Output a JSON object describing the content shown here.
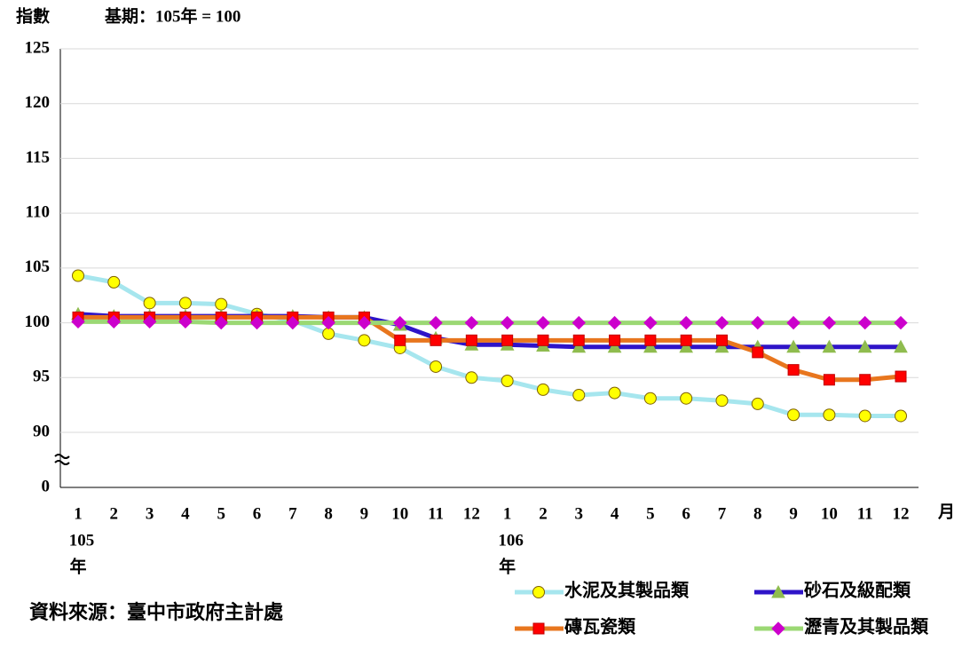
{
  "chart_data": {
    "type": "line",
    "y_label": "指數",
    "subtitle": "基期：105年 = 100",
    "x_label": "月",
    "source": "資料來源：臺中市政府主計處",
    "categories": [
      "1",
      "2",
      "3",
      "4",
      "5",
      "6",
      "7",
      "8",
      "9",
      "10",
      "11",
      "12",
      "1",
      "2",
      "3",
      "4",
      "5",
      "6",
      "7",
      "8",
      "9",
      "10",
      "11",
      "12"
    ],
    "year_labels": [
      "105",
      "106"
    ],
    "year_unit": "年",
    "ylim": [
      0,
      125
    ],
    "yticks": [
      0,
      90,
      95,
      100,
      105,
      110,
      115,
      120,
      125
    ],
    "axis_break": true,
    "grid": true,
    "series": [
      {
        "name": "水泥及其製品類",
        "color": "#a6e6ee",
        "marker": "circle",
        "marker_color": "#ffff00",
        "values": [
          104.3,
          103.7,
          101.8,
          101.8,
          101.7,
          100.8,
          100.2,
          99.0,
          98.4,
          97.7,
          96.0,
          95.0,
          94.7,
          93.9,
          93.4,
          93.6,
          93.1,
          93.1,
          92.9,
          92.6,
          91.6,
          91.6,
          91.5,
          91.5
        ]
      },
      {
        "name": "砂石及級配類",
        "color": "#2e14c8",
        "marker": "triangle",
        "marker_color": "#8fbc4f",
        "values": [
          100.8,
          100.6,
          100.6,
          100.6,
          100.6,
          100.6,
          100.6,
          100.5,
          100.5,
          99.8,
          98.6,
          98.0,
          98.0,
          97.9,
          97.8,
          97.8,
          97.8,
          97.8,
          97.8,
          97.8,
          97.8,
          97.8,
          97.8,
          97.8
        ]
      },
      {
        "name": "磚瓦瓷類",
        "color": "#e8761e",
        "marker": "square",
        "marker_color": "#ff0000",
        "values": [
          100.5,
          100.5,
          100.5,
          100.5,
          100.5,
          100.5,
          100.5,
          100.5,
          100.5,
          98.4,
          98.4,
          98.4,
          98.4,
          98.4,
          98.4,
          98.4,
          98.4,
          98.4,
          98.4,
          97.3,
          95.7,
          94.8,
          94.8,
          95.1
        ]
      },
      {
        "name": "瀝青及其製品類",
        "color": "#9bd874",
        "marker": "diamond",
        "marker_color": "#cc00cc",
        "values": [
          100.1,
          100.1,
          100.1,
          100.1,
          100.0,
          100.0,
          100.0,
          100.0,
          100.0,
          100.0,
          100.0,
          100.0,
          100.0,
          100.0,
          100.0,
          100.0,
          100.0,
          100.0,
          100.0,
          100.0,
          100.0,
          100.0,
          100.0,
          100.0
        ]
      }
    ]
  }
}
